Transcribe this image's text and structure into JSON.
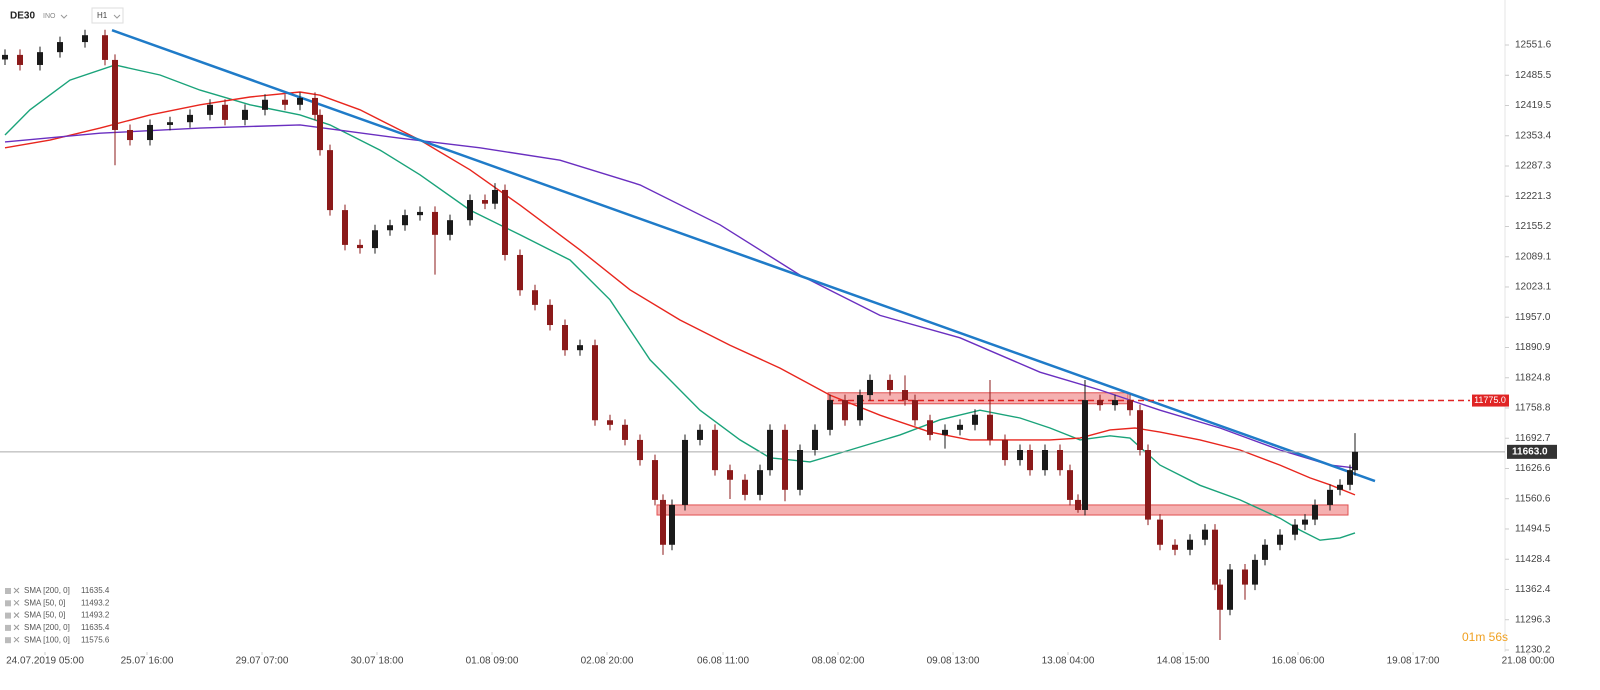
{
  "header": {
    "symbol": "DE30",
    "source": "INO",
    "timeframe": "H1",
    "countdown": "01m 56s"
  },
  "chart_data": {
    "type": "candlestick",
    "up_color": "#1a1a1a",
    "down_color": "#8b1a1a",
    "xlim": [
      0,
      312.8
    ],
    "ylim": [
      11225.8,
      12649.9
    ],
    "xticks": [
      {
        "value": 9,
        "label": "24.07.2019 05:00"
      },
      {
        "value": 29.4,
        "label": "25.07 16:00"
      },
      {
        "value": 52.4,
        "label": "29.07 07:00"
      },
      {
        "value": 75.4,
        "label": "30.07 18:00"
      },
      {
        "value": 98.4,
        "label": "01.08 09:00"
      },
      {
        "value": 121.4,
        "label": "02.08 20:00"
      },
      {
        "value": 144.6,
        "label": "06.08 11:00"
      },
      {
        "value": 167.6,
        "label": "08.08 02:00"
      },
      {
        "value": 190.6,
        "label": "09.08 13:00"
      },
      {
        "value": 213.6,
        "label": "13.08 04:00"
      },
      {
        "value": 236.6,
        "label": "14.08 15:00"
      },
      {
        "value": 259.6,
        "label": "16.08 06:00"
      },
      {
        "value": 282.6,
        "label": "19.08 17:00"
      },
      {
        "value": 305.6,
        "label": "21.08 00:00"
      }
    ],
    "yticks": [
      12551.6,
      12485.5,
      12419.5,
      12353.4,
      12287.3,
      12221.3,
      12155.2,
      12089.1,
      12023.1,
      {
        "value": 11957,
        "label": "11957.0"
      },
      11890.9,
      11824.8,
      11758.8,
      11692.7,
      11626.6,
      11560.6,
      11494.5,
      11428.4,
      11362.4,
      11296.3,
      11230.2
    ],
    "x": [
      1,
      4,
      8,
      12,
      17,
      21,
      23,
      26,
      30,
      34,
      38,
      42,
      45,
      49,
      53,
      57,
      60,
      63,
      64,
      66,
      69,
      72,
      75,
      78,
      81,
      84,
      87,
      90,
      94,
      97,
      99,
      101,
      104,
      107,
      110,
      113,
      116,
      119,
      122,
      125,
      128,
      131,
      132.6,
      134.4,
      137,
      140,
      143,
      146,
      149,
      152,
      154,
      157,
      160,
      163,
      166,
      169,
      172,
      174,
      178,
      181,
      183,
      186,
      189,
      192,
      195,
      198,
      201,
      204,
      206,
      209,
      212,
      214,
      215.6,
      217,
      220,
      223,
      226,
      228,
      229.6,
      232,
      235,
      238,
      241,
      243,
      244,
      246,
      249,
      251,
      253,
      256,
      259,
      261,
      263,
      266,
      268,
      270,
      271
    ],
    "open": [
      12520,
      12530,
      12508,
      12536,
      12558,
      12573,
      12519,
      12366,
      12344,
      12377,
      12383,
      12399,
      12421,
      12388,
      12410,
      12432,
      12421,
      12436,
      12399,
      12322,
      12191,
      12115,
      12108,
      12147,
      12158,
      12180,
      12187,
      12137,
      12169,
      12213,
      12205,
      12235,
      12093,
      12016,
      11984,
      11940,
      11885,
      11896,
      11732,
      11722,
      11689,
      11645,
      11558,
      11460,
      11547,
      11689,
      11711,
      11623,
      11602,
      11569,
      11623,
      11711,
      11580,
      11667,
      11711,
      11776,
      11732,
      11787,
      11820,
      11798,
      11776,
      11732,
      11700,
      11711,
      11722,
      11744,
      11689,
      11645,
      11667,
      11623,
      11667,
      11623,
      11558,
      11536,
      11776,
      11765,
      11776,
      11754,
      11667,
      11515,
      11460,
      11449,
      11471,
      11493,
      11373,
      11318,
      11406,
      11373,
      11427,
      11460,
      11482,
      11504,
      11515,
      11547,
      11580,
      11591,
      11623
    ],
    "high": [
      12542,
      12542,
      12548,
      12570,
      12585,
      12585,
      12531,
      12378,
      12389,
      12395,
      12411,
      12433,
      12433,
      12422,
      12444,
      12444,
      12448,
      12448,
      12411,
      12334,
      12203,
      12127,
      12159,
      12170,
      12192,
      12199,
      12199,
      12181,
      12225,
      12225,
      12250,
      12247,
      12105,
      12028,
      11996,
      11952,
      11908,
      11908,
      11744,
      11734,
      11701,
      11657,
      11570,
      11559,
      11701,
      11723,
      11723,
      11635,
      11614,
      11635,
      11723,
      11723,
      11679,
      11723,
      11788,
      11788,
      11799,
      11832,
      11832,
      11830,
      11788,
      11744,
      11723,
      11734,
      11756,
      11820,
      11701,
      11679,
      11679,
      11679,
      11679,
      11635,
      11570,
      11820,
      11788,
      11788,
      11788,
      11766,
      11679,
      11527,
      11472,
      11483,
      11505,
      11505,
      11385,
      11418,
      11418,
      11439,
      11472,
      11494,
      11516,
      11527,
      11559,
      11592,
      11603,
      11635,
      11704
    ],
    "low": [
      12508,
      12496,
      12496,
      12524,
      12546,
      12507,
      12289,
      12332,
      12332,
      12365,
      12371,
      12387,
      12376,
      12376,
      12398,
      12409,
      12409,
      12387,
      12310,
      12179,
      12103,
      12096,
      12096,
      12135,
      12146,
      12168,
      12050,
      12125,
      12157,
      12193,
      12193,
      12081,
      12004,
      11972,
      11928,
      11873,
      11873,
      11720,
      11710,
      11677,
      11633,
      11546,
      11438,
      11448,
      11535,
      11677,
      11611,
      11560,
      11557,
      11557,
      11611,
      11555,
      11568,
      11655,
      11699,
      11720,
      11720,
      11775,
      11786,
      11764,
      11720,
      11688,
      11670,
      11699,
      11710,
      11677,
      11633,
      11633,
      11611,
      11611,
      11611,
      11546,
      11530,
      11524,
      11753,
      11753,
      11742,
      11655,
      11503,
      11448,
      11437,
      11437,
      11459,
      11361,
      11252,
      11306,
      11340,
      11361,
      11415,
      11448,
      11470,
      11492,
      11503,
      11535,
      11568,
      11579,
      11611
    ],
    "close": [
      12530,
      12508,
      12536,
      12558,
      12573,
      12519,
      12366,
      12344,
      12377,
      12383,
      12399,
      12421,
      12388,
      12410,
      12432,
      12421,
      12436,
      12399,
      12322,
      12191,
      12115,
      12108,
      12147,
      12158,
      12180,
      12187,
      12137,
      12169,
      12213,
      12205,
      12235,
      12093,
      12016,
      11984,
      11940,
      11885,
      11896,
      11732,
      11722,
      11689,
      11645,
      11558,
      11460,
      11547,
      11689,
      11711,
      11623,
      11602,
      11569,
      11623,
      11711,
      11580,
      11667,
      11711,
      11776,
      11732,
      11787,
      11820,
      11798,
      11776,
      11732,
      11700,
      11711,
      11722,
      11744,
      11689,
      11645,
      11667,
      11623,
      11667,
      11623,
      11558,
      11536,
      11776,
      11765,
      11776,
      11754,
      11667,
      11515,
      11460,
      11449,
      11471,
      11493,
      11373,
      11318,
      11406,
      11373,
      11427,
      11460,
      11482,
      11504,
      11515,
      11547,
      11580,
      11591,
      11623,
      11663
    ],
    "lines": [
      {
        "color": "#1aa37a",
        "x": [
          1,
          6,
          14,
          23,
          32,
          40,
          50,
          60,
          66,
          76,
          84,
          94,
          104,
          114,
          122,
          130,
          140,
          148,
          154,
          162,
          170,
          180,
          188,
          196,
          204,
          210,
          216,
          222,
          226,
          232,
          240,
          248,
          256,
          260,
          264,
          268,
          271
        ],
        "values": [
          12355,
          12410,
          12475,
          12508,
          12486,
          12453,
          12421,
          12399,
          12377,
          12322,
          12268,
          12191,
          12137,
          12082,
          11995,
          11864,
          11754,
          11689,
          11650,
          11641,
          11667,
          11700,
          11733,
          11754,
          11737,
          11715,
          11689,
          11698,
          11693,
          11634,
          11590,
          11558,
          11518,
          11492,
          11470,
          11475,
          11486
        ]
      },
      {
        "color": "#e8261e",
        "x": [
          1,
          10,
          20,
          30,
          40,
          50,
          60,
          64,
          72,
          84,
          94,
          104,
          116,
          126,
          136,
          146,
          156,
          166,
          176,
          186,
          194,
          202,
          210,
          216,
          222,
          227,
          232,
          240,
          248,
          256,
          262,
          266,
          271
        ],
        "values": [
          12327,
          12344,
          12370,
          12399,
          12421,
          12438,
          12449,
          12442,
          12410,
          12344,
          12279,
          12202,
          12104,
          12017,
          11951,
          11896,
          11846,
          11787,
          11743,
          11706,
          11689,
          11689,
          11689,
          11693,
          11711,
          11715,
          11706,
          11689,
          11667,
          11634,
          11606,
          11591,
          11569
        ]
      },
      {
        "color": "#6a2fc0",
        "x": [
          1,
          20,
          40,
          60,
          80,
          96,
          112,
          128,
          144,
          160,
          176,
          192,
          208,
          220,
          232,
          244,
          256,
          266,
          271
        ],
        "values": [
          12340,
          12359,
          12370,
          12377,
          12348,
          12327,
          12300,
          12246,
          12159,
          12049,
          11961,
          11912,
          11837,
          11798,
          11754,
          11715,
          11667,
          11634,
          11628
        ]
      },
      {
        "color": "#1f7bc8",
        "x": [
          22.4,
          275
        ],
        "values": [
          12584,
          11599
        ]
      }
    ],
    "zones": [
      {
        "x": [
          165.6,
          225.6
        ],
        "y": [
          11768,
          11792
        ]
      },
      {
        "x": [
          131.4,
          269.6
        ],
        "y": [
          11525,
          11547
        ]
      }
    ],
    "level": {
      "value": 11775,
      "label": "11775.0",
      "x": 165.6,
      "color": "#e02424"
    },
    "last_price": {
      "value": 11663,
      "label": "11663.0"
    },
    "legend_items": [
      {
        "label": "SMA [200, 0]",
        "value": 11635.4
      },
      {
        "label": "SMA [50, 0]",
        "value": 11493.2
      },
      {
        "label": "SMA [50, 0]",
        "value": 11493.2
      },
      {
        "label": "SMA [200, 0]",
        "value": 11635.4
      },
      {
        "label": "SMA [100, 0]",
        "value": 11575.6
      }
    ]
  }
}
